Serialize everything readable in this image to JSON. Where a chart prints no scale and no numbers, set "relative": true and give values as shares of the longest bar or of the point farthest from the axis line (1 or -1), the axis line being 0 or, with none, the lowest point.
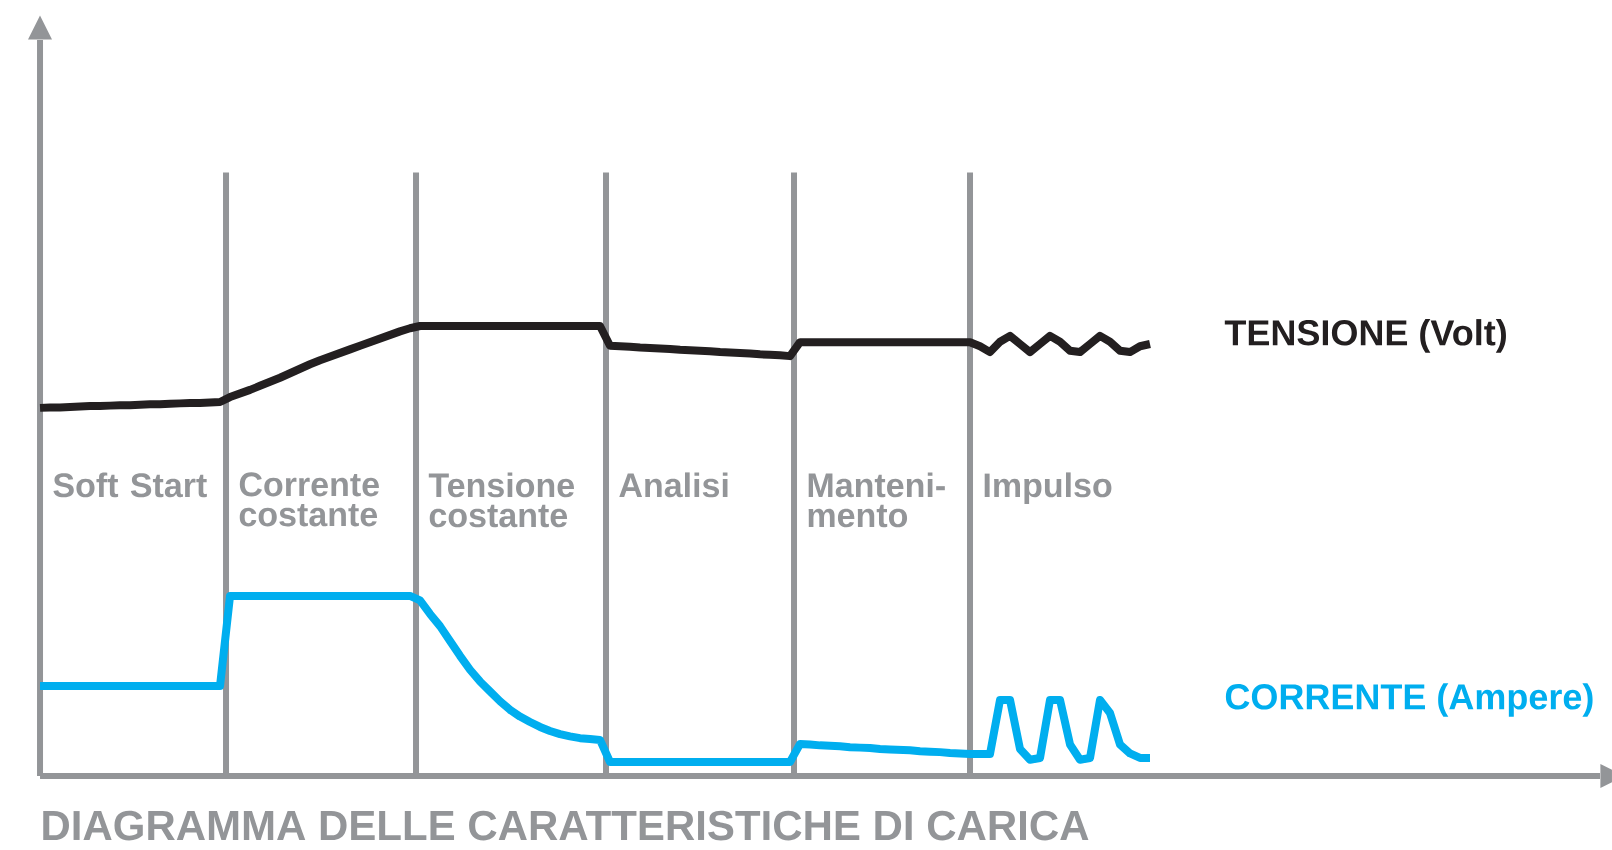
{
  "chart_data": {
    "type": "line",
    "title": "DIAGRAMMA DELLE CARATTERISTICHE DI CARICA",
    "relative": true,
    "tick_labels": false,
    "marker": "none",
    "line_style": "solid",
    "categories": [
      null,
      null,
      null,
      null,
      null,
      null,
      null,
      null,
      null,
      null,
      null,
      null,
      null,
      null,
      null,
      null,
      null,
      null,
      null,
      null,
      null,
      null,
      null,
      null,
      null,
      null,
      null,
      null,
      null,
      null,
      null,
      null,
      null,
      null,
      null,
      null,
      null,
      null,
      null,
      null,
      null,
      null,
      null,
      null,
      null,
      null,
      null,
      null,
      null,
      null,
      null,
      null,
      null,
      null,
      null,
      null,
      null,
      null,
      null,
      null,
      null,
      null,
      null,
      null,
      null,
      null,
      null,
      null,
      null,
      null,
      null,
      null,
      null,
      null,
      null,
      null,
      null,
      null,
      null,
      null,
      null,
      null,
      null,
      null,
      null,
      null,
      null,
      null,
      null,
      null,
      null,
      null,
      null,
      null,
      null,
      null,
      null,
      null,
      null,
      null,
      null,
      null,
      null,
      null,
      null,
      null,
      null,
      null,
      null,
      null,
      null,
      null
    ],
    "series": [
      {
        "name": "TENSIONE (Volt)",
        "color": "#231f20",
        "values": [
          0.818,
          0.819,
          0.819,
          0.82,
          0.821,
          0.822,
          0.822,
          0.823,
          0.824,
          0.824,
          0.825,
          0.826,
          0.826,
          0.827,
          0.828,
          0.829,
          0.829,
          0.83,
          0.831,
          0.842,
          0.85,
          0.858,
          0.867,
          0.876,
          0.885,
          0.895,
          0.905,
          0.915,
          0.924,
          0.932,
          0.94,
          0.948,
          0.956,
          0.964,
          0.972,
          0.98,
          0.988,
          0.995,
          1.0,
          1.0,
          1.0,
          1.0,
          1.0,
          1.0,
          1.0,
          1.0,
          1.0,
          1.0,
          1.0,
          1.0,
          1.0,
          1.0,
          1.0,
          1.0,
          1.0,
          1.0,
          1.0,
          0.956,
          0.955,
          0.954,
          0.952,
          0.951,
          0.95,
          0.949,
          0.947,
          0.946,
          0.945,
          0.944,
          0.942,
          0.941,
          0.94,
          0.939,
          0.937,
          0.936,
          0.935,
          0.933,
          0.964,
          0.964,
          0.964,
          0.964,
          0.964,
          0.964,
          0.964,
          0.964,
          0.964,
          0.964,
          0.964,
          0.964,
          0.964,
          0.964,
          0.964,
          0.964,
          0.964,
          0.964,
          0.955,
          0.942,
          0.965,
          0.978,
          0.96,
          0.942,
          0.96,
          0.978,
          0.965,
          0.945,
          0.942,
          0.96,
          0.978,
          0.965,
          0.945,
          0.942,
          0.955,
          0.96
        ]
      },
      {
        "name": "CORRENTE (Ampere)",
        "color": "#00aeef",
        "values": [
          0.2,
          0.2,
          0.2,
          0.2,
          0.2,
          0.2,
          0.2,
          0.2,
          0.2,
          0.2,
          0.2,
          0.2,
          0.2,
          0.2,
          0.2,
          0.2,
          0.2,
          0.2,
          0.2,
          0.4,
          0.4,
          0.4,
          0.4,
          0.4,
          0.4,
          0.4,
          0.4,
          0.4,
          0.4,
          0.4,
          0.4,
          0.4,
          0.4,
          0.4,
          0.4,
          0.4,
          0.4,
          0.4,
          0.39,
          0.36,
          0.333,
          0.3,
          0.267,
          0.236,
          0.21,
          0.188,
          0.166,
          0.147,
          0.132,
          0.12,
          0.109,
          0.1,
          0.093,
          0.088,
          0.084,
          0.082,
          0.08,
          0.031,
          0.031,
          0.031,
          0.031,
          0.031,
          0.031,
          0.031,
          0.031,
          0.031,
          0.031,
          0.031,
          0.031,
          0.031,
          0.031,
          0.031,
          0.031,
          0.031,
          0.031,
          0.031,
          0.071,
          0.07,
          0.068,
          0.067,
          0.066,
          0.064,
          0.063,
          0.062,
          0.06,
          0.059,
          0.058,
          0.057,
          0.055,
          0.054,
          0.053,
          0.051,
          0.05,
          0.049,
          0.049,
          0.049,
          0.169,
          0.169,
          0.06,
          0.036,
          0.04,
          0.169,
          0.169,
          0.07,
          0.036,
          0.04,
          0.169,
          0.14,
          0.07,
          0.05,
          0.04,
          0.04
        ]
      }
    ],
    "annotations": [
      "Soft Start",
      "Corrente costante",
      "Tensione costante",
      "Analisi",
      "Manteni-mento",
      "Impulso"
    ]
  }
}
